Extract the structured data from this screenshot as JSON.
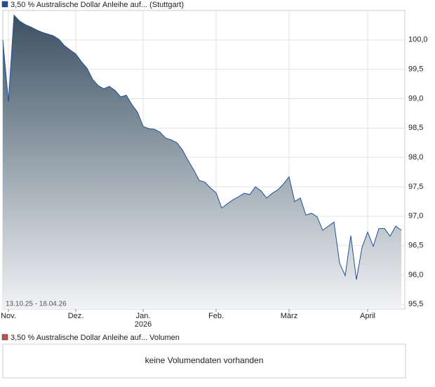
{
  "chart_data": {
    "type": "area",
    "legend_text": "3,50 % Australische Dollar Anleihe auf... (Stuttgart)",
    "date_range": "13.10.25 - 18.04.26",
    "year_label": "2026",
    "categories": [
      null,
      "Nov.",
      null,
      null,
      null,
      null,
      null,
      null,
      null,
      null,
      null,
      null,
      null,
      "Dez.",
      null,
      null,
      null,
      null,
      null,
      null,
      null,
      null,
      null,
      null,
      null,
      "Jan.",
      null,
      null,
      null,
      null,
      null,
      null,
      null,
      null,
      null,
      null,
      null,
      null,
      "Feb.",
      null,
      null,
      null,
      null,
      null,
      null,
      null,
      null,
      null,
      null,
      null,
      null,
      "März",
      null,
      null,
      null,
      null,
      null,
      null,
      null,
      null,
      null,
      null,
      null,
      null,
      null,
      "April",
      null,
      null,
      null,
      null,
      null,
      null
    ],
    "series": [
      {
        "name": "3,50 % Australische Dollar Anleihe auf...",
        "color": "#1f4e9c",
        "values": [
          100.0,
          98.95,
          100.42,
          100.32,
          100.26,
          100.22,
          100.17,
          100.13,
          100.1,
          100.07,
          100.01,
          99.9,
          99.83,
          99.76,
          99.63,
          99.52,
          99.33,
          99.22,
          99.17,
          99.21,
          99.14,
          99.03,
          99.06,
          98.9,
          98.77,
          98.53,
          98.49,
          98.48,
          98.43,
          98.33,
          98.3,
          98.25,
          98.13,
          97.95,
          97.79,
          97.61,
          97.58,
          97.48,
          97.4,
          97.14,
          97.21,
          97.28,
          97.33,
          97.39,
          97.37,
          97.5,
          97.43,
          97.31,
          97.39,
          97.45,
          97.55,
          97.67,
          97.25,
          97.31,
          97.02,
          97.05,
          96.99,
          96.76,
          96.83,
          96.9,
          96.2,
          95.99,
          96.67,
          95.92,
          96.47,
          96.73,
          96.49,
          96.79,
          96.79,
          96.66,
          96.83,
          96.76
        ]
      }
    ],
    "ylim": [
      95.42,
      100.5
    ],
    "yticks": [
      {
        "value": 95.5,
        "label": "95,5"
      },
      {
        "value": 96,
        "label": "96,0"
      },
      {
        "value": 96.5,
        "label": "96,5"
      },
      {
        "value": 97,
        "label": "97,0"
      },
      {
        "value": 97.5,
        "label": "97,5"
      },
      {
        "value": 98,
        "label": "98,0"
      },
      {
        "value": 98.5,
        "label": "98,5"
      },
      {
        "value": 99,
        "label": "99,0"
      },
      {
        "value": 99.5,
        "label": "99,5"
      },
      {
        "value": 100,
        "label": "100,0"
      }
    ],
    "grid": true
  },
  "volume_panel": {
    "legend_text": "3,50 % Australische Dollar Anleihe auf... Volumen",
    "color": "#c0504d",
    "message": "keine Volumendaten vorhanden"
  }
}
